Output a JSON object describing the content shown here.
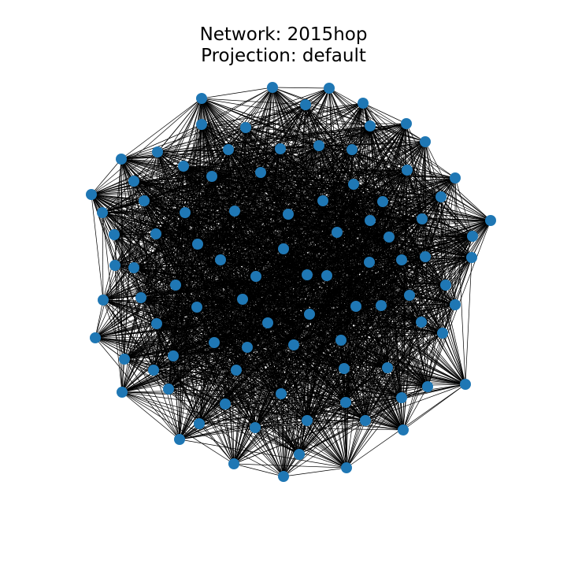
{
  "title": {
    "line1": "Network: 2015hop",
    "line2": "Projection: default"
  },
  "graph": {
    "node_color": "#1f77b4",
    "edge_color": "#000000",
    "background": "#ffffff",
    "node_count": 96,
    "edge_density": 0.5,
    "layout": "spring"
  }
}
